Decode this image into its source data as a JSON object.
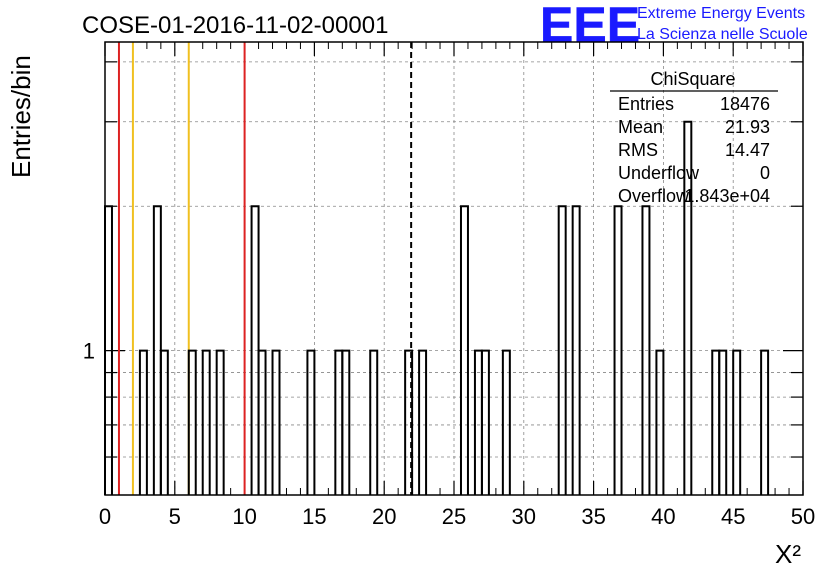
{
  "header": {
    "run_title": "COSE-01-2016-11-02-00001",
    "logo_text": "EEE",
    "logo_line1": "Extreme Energy Events",
    "logo_line2": "La Scienza nelle Scuole",
    "brand_color": "#1a1aff"
  },
  "stats_box": {
    "title": "ChiSquare",
    "rows": [
      {
        "label": "Entries",
        "value": "18476"
      },
      {
        "label": "Mean",
        "value": "21.93"
      },
      {
        "label": "RMS",
        "value": "14.47"
      },
      {
        "label": "Underflow",
        "value": "0"
      },
      {
        "label": "Overflow",
        "value": "1.843e+04"
      }
    ]
  },
  "chart_data": {
    "type": "bar",
    "style": "step-histogram",
    "ylabel": "Entries/bin",
    "xlabel": "X²",
    "xlim": [
      0,
      50
    ],
    "ylim": [
      0.5,
      4.4
    ],
    "y_scale": "log",
    "grid": true,
    "bin_width": 0.5,
    "x_ticks": [
      0,
      5,
      10,
      15,
      20,
      25,
      30,
      35,
      40,
      45,
      50
    ],
    "y_tick_labels": [
      {
        "value": 1,
        "label": "1"
      }
    ],
    "bins": [
      {
        "x": 0.0,
        "count": 2
      },
      {
        "x": 2.5,
        "count": 1
      },
      {
        "x": 3.5,
        "count": 2
      },
      {
        "x": 4.0,
        "count": 1
      },
      {
        "x": 6.0,
        "count": 1
      },
      {
        "x": 7.0,
        "count": 1
      },
      {
        "x": 8.0,
        "count": 1
      },
      {
        "x": 10.5,
        "count": 2
      },
      {
        "x": 11.0,
        "count": 1
      },
      {
        "x": 12.0,
        "count": 1
      },
      {
        "x": 14.5,
        "count": 1
      },
      {
        "x": 16.5,
        "count": 1
      },
      {
        "x": 17.0,
        "count": 1
      },
      {
        "x": 19.0,
        "count": 1
      },
      {
        "x": 21.5,
        "count": 1
      },
      {
        "x": 22.5,
        "count": 1
      },
      {
        "x": 25.5,
        "count": 2
      },
      {
        "x": 26.5,
        "count": 1
      },
      {
        "x": 27.0,
        "count": 1
      },
      {
        "x": 28.5,
        "count": 1
      },
      {
        "x": 32.5,
        "count": 2
      },
      {
        "x": 33.5,
        "count": 2
      },
      {
        "x": 36.5,
        "count": 2
      },
      {
        "x": 38.5,
        "count": 2
      },
      {
        "x": 39.5,
        "count": 1
      },
      {
        "x": 41.5,
        "count": 3
      },
      {
        "x": 43.5,
        "count": 1
      },
      {
        "x": 44.0,
        "count": 1
      },
      {
        "x": 45.0,
        "count": 1
      },
      {
        "x": 47.0,
        "count": 1
      }
    ],
    "vertical_lines": [
      {
        "x": 1,
        "color": "#dd2222",
        "style": "solid"
      },
      {
        "x": 2,
        "color": "#f0c020",
        "style": "solid"
      },
      {
        "x": 6,
        "color": "#f0c020",
        "style": "solid"
      },
      {
        "x": 10,
        "color": "#dd2222",
        "style": "solid"
      },
      {
        "x": 21.93,
        "color": "#000000",
        "style": "dashed"
      }
    ]
  }
}
